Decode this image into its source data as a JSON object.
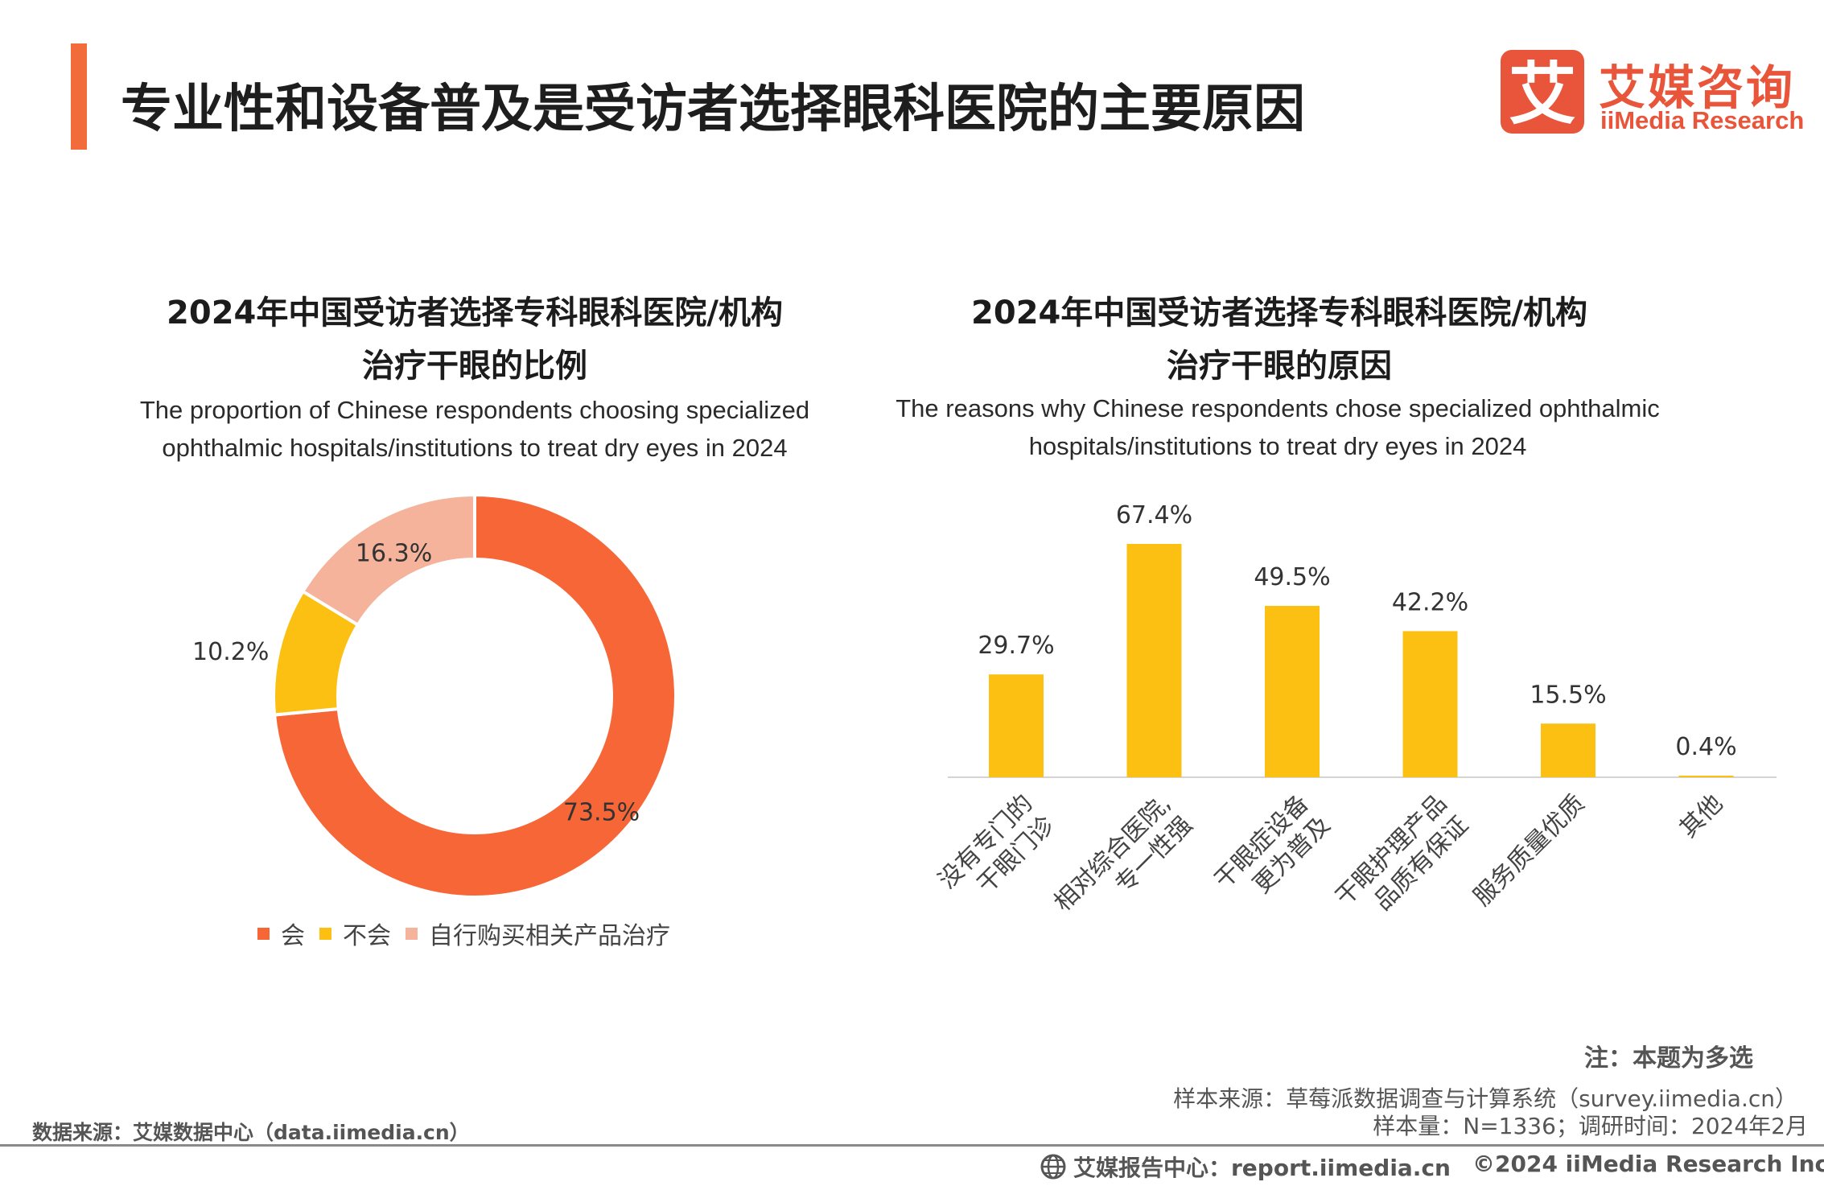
{
  "header": {
    "title": "专业性和设备普及是受访者选择眼科医院的主要原因",
    "accent_color": "#f26b3a",
    "logo_cn": "艾媒咨询",
    "logo_en": "iiMedia Research",
    "logo_mark_char": "艾",
    "logo_color": "#e8553a"
  },
  "left_chart": {
    "title_line1": "2024年中国受访者选择专科眼科医院/机构",
    "title_line2": "治疗干眼的比例",
    "subtitle_line1": "The proportion of Chinese respondents choosing specialized",
    "subtitle_line2": "ophthalmic hospitals/institutions to treat dry eyes in 2024"
  },
  "right_chart": {
    "title_line1": "2024年中国受访者选择专科眼科医院/机构",
    "title_line2": "治疗干眼的原因",
    "subtitle_line1": "The reasons why Chinese respondents chose specialized ophthalmic",
    "subtitle_line2": "hospitals/institutions to treat dry eyes in 2024"
  },
  "chart_data": [
    {
      "type": "pie",
      "variant": "donut",
      "categories": [
        "会",
        "不会",
        "自行购买相关产品治疗"
      ],
      "values": [
        73.5,
        10.2,
        16.3
      ],
      "labels": [
        "73.5%",
        "10.2%",
        "16.3%"
      ],
      "colors": [
        "#f76637",
        "#fcc012",
        "#f4b39a"
      ],
      "legend_position": "bottom"
    },
    {
      "type": "bar",
      "categories": [
        [
          "没有专门的",
          "干眼门诊"
        ],
        [
          "相对综合医院,",
          "专一性强"
        ],
        [
          "干眼症设备",
          "更为普及"
        ],
        [
          "干眼护理产品",
          "品质有保证"
        ],
        [
          "服务质量优质"
        ],
        [
          "其他"
        ]
      ],
      "values": [
        29.7,
        67.4,
        49.5,
        42.2,
        15.5,
        0.4
      ],
      "labels": [
        "29.7%",
        "67.4%",
        "49.5%",
        "42.2%",
        "15.5%",
        "0.4%"
      ],
      "color": "#fcc012",
      "ylim": [
        0,
        67.4
      ],
      "grid": false
    }
  ],
  "legend": [
    "会",
    "不会",
    "自行购买相关产品治疗"
  ],
  "footer": {
    "note": "注：本题为多选",
    "sample_source": "样本来源：草莓派数据调查与计算系统（survey.iimedia.cn）",
    "sample_size": "样本量：N=1336；调研时间：2024年2月",
    "data_source": "数据来源：艾媒数据中心（data.iimedia.cn）",
    "report_center": "艾媒报告中心：report.iimedia.cn",
    "copyright": "©2024  iiMedia Research  Inc"
  }
}
